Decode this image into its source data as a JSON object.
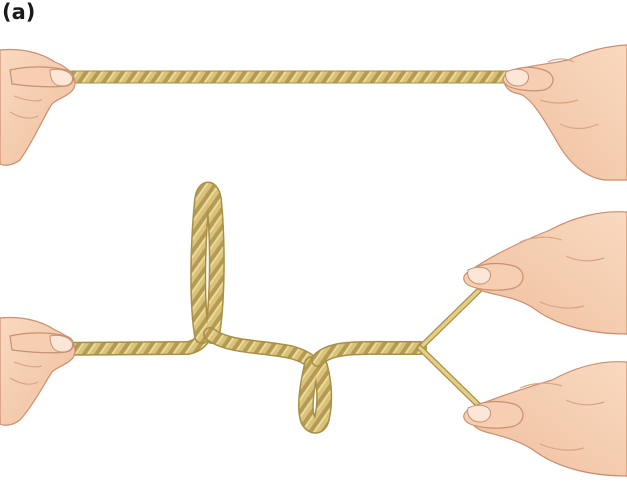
{
  "figure": {
    "panel_label": "(a)"
  },
  "colors": {
    "rope_base": "#d9c27a",
    "rope_dark": "#a88f45",
    "rope_light": "#efe1a8",
    "skin": "#f6cfb2",
    "skin_shadow": "#e2a988",
    "skin_outline": "#c98f70",
    "nail": "#fbe6d8"
  },
  "illustration": {
    "top_scene": "taut-rope-held-by-two-hands",
    "bottom_scene": "twisted-rope-with-loops-unwinding-into-two-strands"
  }
}
